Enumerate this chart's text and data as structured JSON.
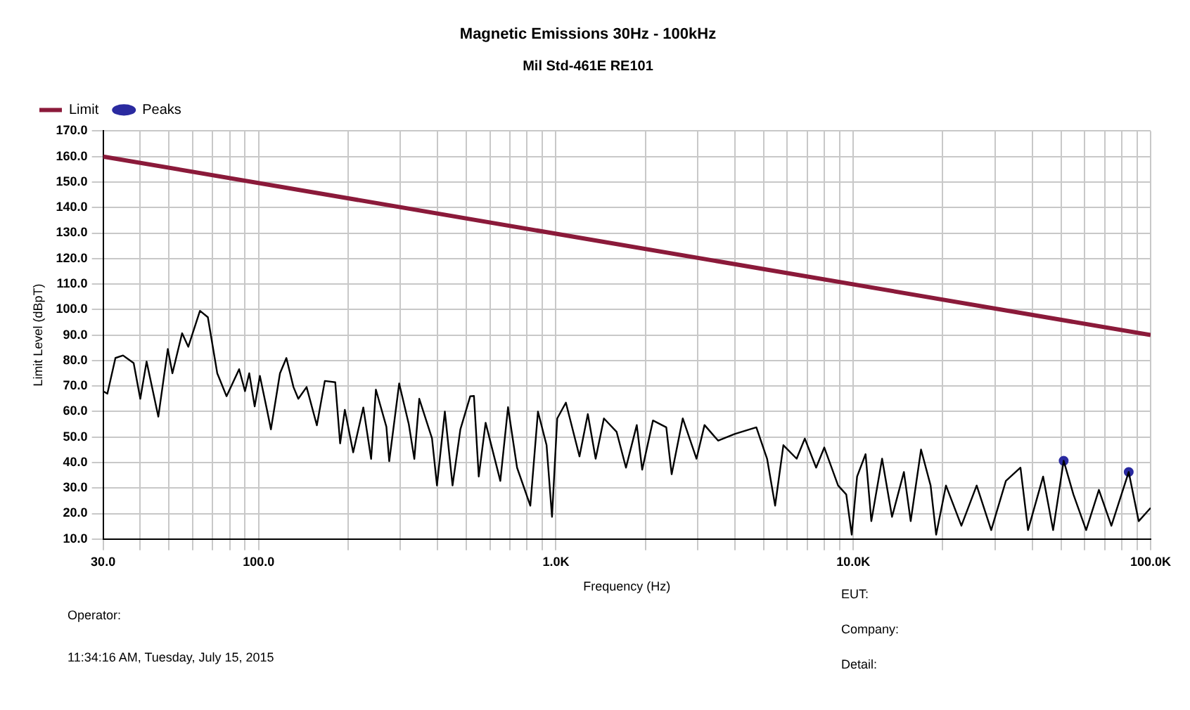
{
  "chart_data": {
    "type": "line",
    "title": "Magnetic Emissions 30Hz - 100kHz",
    "subtitle": "Mil Std-461E RE101",
    "xlabel": "Frequency (Hz)",
    "ylabel": "Limit Level (dBpT)",
    "log": "x",
    "grid": true,
    "legend": "top left",
    "marker": "none",
    "line_style": "solid",
    "xlim": [
      30,
      100000
    ],
    "ylim": [
      10,
      170
    ],
    "xticks": [
      {
        "value": 30,
        "label": "30.0"
      },
      {
        "value": 40,
        "label": null
      },
      {
        "value": 50,
        "label": null
      },
      {
        "value": 60,
        "label": null
      },
      {
        "value": 70,
        "label": null
      },
      {
        "value": 80,
        "label": null
      },
      {
        "value": 90,
        "label": null
      },
      {
        "value": 100,
        "label": "100.0"
      },
      {
        "value": 200,
        "label": null
      },
      {
        "value": 300,
        "label": null
      },
      {
        "value": 400,
        "label": null
      },
      {
        "value": 500,
        "label": null
      },
      {
        "value": 600,
        "label": null
      },
      {
        "value": 700,
        "label": null
      },
      {
        "value": 800,
        "label": null
      },
      {
        "value": 900,
        "label": null
      },
      {
        "value": 1000,
        "label": "1.0K"
      },
      {
        "value": 2000,
        "label": null
      },
      {
        "value": 3000,
        "label": null
      },
      {
        "value": 4000,
        "label": null
      },
      {
        "value": 5000,
        "label": null
      },
      {
        "value": 6000,
        "label": null
      },
      {
        "value": 7000,
        "label": null
      },
      {
        "value": 8000,
        "label": null
      },
      {
        "value": 9000,
        "label": null
      },
      {
        "value": 10000,
        "label": "10.0K"
      },
      {
        "value": 20000,
        "label": null
      },
      {
        "value": 30000,
        "label": null
      },
      {
        "value": 40000,
        "label": null
      },
      {
        "value": 50000,
        "label": null
      },
      {
        "value": 60000,
        "label": null
      },
      {
        "value": 70000,
        "label": null
      },
      {
        "value": 80000,
        "label": null
      },
      {
        "value": 90000,
        "label": null
      },
      {
        "value": 100000,
        "label": "100.0K"
      }
    ],
    "yticks": [
      {
        "value": 10,
        "label": "10.0"
      },
      {
        "value": 20,
        "label": "20.0"
      },
      {
        "value": 30,
        "label": "30.0"
      },
      {
        "value": 40,
        "label": "40.0"
      },
      {
        "value": 50,
        "label": "50.0"
      },
      {
        "value": 60,
        "label": "60.0"
      },
      {
        "value": 70,
        "label": "70.0"
      },
      {
        "value": 80,
        "label": "80.0"
      },
      {
        "value": 90,
        "label": "90.0"
      },
      {
        "value": 100,
        "label": "100.0"
      },
      {
        "value": 110,
        "label": "110.0"
      },
      {
        "value": 120,
        "label": "120.0"
      },
      {
        "value": 130,
        "label": "130.0"
      },
      {
        "value": 140,
        "label": "140.0"
      },
      {
        "value": 150,
        "label": "150.0"
      },
      {
        "value": 160,
        "label": "160.0"
      },
      {
        "value": 170,
        "label": "170.0"
      }
    ],
    "series": [
      {
        "name": "Limit",
        "color": "#8b1a3a",
        "x": [
          30,
          100000
        ],
        "values": [
          160,
          90
        ]
      },
      {
        "color": "#000000",
        "x": [
          30,
          31,
          33,
          35,
          38,
          40,
          42,
          46,
          49.5,
          51.3,
          55.3,
          58,
          63.5,
          67.5,
          72.6,
          78,
          86,
          90,
          93,
          97,
          101,
          107,
          110,
          118,
          124,
          131,
          136,
          145,
          157,
          167,
          181,
          188,
          195,
          208,
          225,
          239,
          248,
          269,
          275,
          297,
          320,
          334,
          347,
          383,
          398,
          423,
          449,
          477,
          515,
          530,
          550,
          580,
          650,
          690,
          740,
          820,
          870,
          930,
          970,
          1010,
          1080,
          1200,
          1280,
          1360,
          1450,
          1600,
          1720,
          1870,
          1950,
          2120,
          2350,
          2450,
          2670,
          2970,
          3160,
          3510,
          3990,
          4720,
          5130,
          5460,
          5820,
          6450,
          6870,
          7500,
          7990,
          8890,
          9470,
          9880,
          10300,
          11000,
          11500,
          12500,
          13500,
          14800,
          15600,
          16900,
          18200,
          19000,
          20500,
          23100,
          26000,
          29100,
          32600,
          36500,
          38700,
          43500,
          47000,
          51000,
          55000,
          60700,
          67000,
          73800,
          84400,
          91200,
          100000
        ],
        "values": [
          68,
          67,
          81,
          82,
          79,
          65,
          79.6,
          58,
          84.5,
          75,
          90.7,
          85.4,
          99.5,
          97,
          75,
          66,
          76.6,
          68,
          75,
          62,
          74,
          60,
          53,
          75,
          81,
          69.6,
          65,
          69.6,
          54.6,
          72,
          71.5,
          47.5,
          60.7,
          44,
          61.6,
          41.4,
          68.6,
          54,
          40.5,
          71,
          55,
          41.4,
          65,
          49.5,
          31,
          60,
          31,
          53,
          66,
          66.1,
          34.5,
          55.6,
          32.8,
          61.7,
          38,
          23.1,
          60,
          46.8,
          18.7,
          57.3,
          63.5,
          42.4,
          59,
          41.5,
          57.3,
          52,
          38,
          54.7,
          37.2,
          56.5,
          53.8,
          35.4,
          57.3,
          41.5,
          54.7,
          48.6,
          51.2,
          53.8,
          41.5,
          23.1,
          46.8,
          41.5,
          49.4,
          38,
          45.9,
          31,
          27.5,
          11.7,
          34.5,
          43.3,
          17,
          41.5,
          18.7,
          36.3,
          17,
          45.1,
          31,
          11.7,
          31,
          15.2,
          31,
          13.5,
          32.8,
          38,
          13.5,
          34.5,
          13.5,
          40.7,
          27.5,
          13.5,
          29.3,
          15.2,
          36.3,
          17,
          22.2
        ]
      },
      {
        "name": "Peaks",
        "type": "scatter",
        "marker": "circle",
        "color": "#2a2aa0",
        "x": [
          51000,
          84400
        ],
        "values": [
          40.7,
          36.3
        ]
      }
    ],
    "annotations": [
      "Operator:",
      "11:34:16 AM, Tuesday, July 15, 2015",
      "EUT:",
      "Company:",
      "Detail:"
    ]
  }
}
